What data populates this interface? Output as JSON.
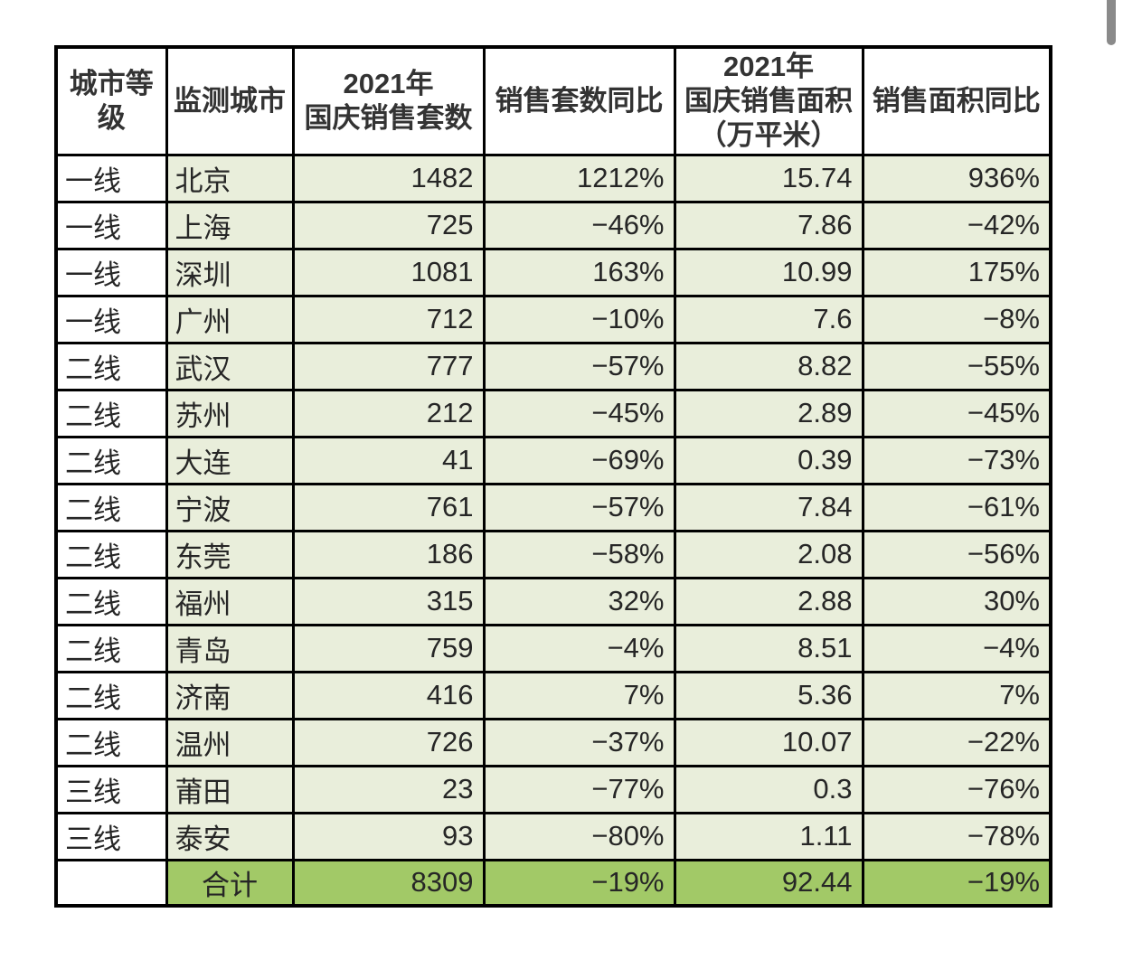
{
  "colors": {
    "cell_background": "#e9eedb",
    "total_row_background": "#a2c967",
    "grid_border": "#000000",
    "header_text": "#333333",
    "body_text": "#262626",
    "scrollbar_thumb": "#8a8a8a",
    "page_background": "#ffffff"
  },
  "chart_data": {
    "type": "table",
    "columns": [
      "城市等级",
      "监测城市",
      "2021年国庆销售套数",
      "销售套数同比",
      "2021年国庆销售面积（万平米）",
      "销售面积同比"
    ],
    "rows": [
      [
        "一线",
        "北京",
        1482,
        "1212%",
        15.74,
        "936%"
      ],
      [
        "一线",
        "上海",
        725,
        "-46%",
        7.86,
        "-42%"
      ],
      [
        "一线",
        "深圳",
        1081,
        "163%",
        10.99,
        "175%"
      ],
      [
        "一线",
        "广州",
        712,
        "-10%",
        7.6,
        "-8%"
      ],
      [
        "二线",
        "武汉",
        777,
        "-57%",
        8.82,
        "-55%"
      ],
      [
        "二线",
        "苏州",
        212,
        "-45%",
        2.89,
        "-45%"
      ],
      [
        "二线",
        "大连",
        41,
        "-69%",
        0.39,
        "-73%"
      ],
      [
        "二线",
        "宁波",
        761,
        "-57%",
        7.84,
        "-61%"
      ],
      [
        "二线",
        "东莞",
        186,
        "-58%",
        2.08,
        "-56%"
      ],
      [
        "二线",
        "福州",
        315,
        "32%",
        2.88,
        "30%"
      ],
      [
        "二线",
        "青岛",
        759,
        "-4%",
        8.51,
        "-4%"
      ],
      [
        "二线",
        "济南",
        416,
        "7%",
        5.36,
        "7%"
      ],
      [
        "二线",
        "温州",
        726,
        "-37%",
        10.07,
        "-22%"
      ],
      [
        "三线",
        "莆田",
        23,
        "-77%",
        0.3,
        "-76%"
      ],
      [
        "三线",
        "泰安",
        93,
        "-80%",
        1.11,
        "-78%"
      ]
    ],
    "total": [
      "",
      "合计",
      8309,
      "-19%",
      92.44,
      "-19%"
    ]
  },
  "table": {
    "headers": {
      "tier": "城市等\n级",
      "city": "监测城市",
      "units": "2021年\n国庆销售套数",
      "units_yoy": "销售套数同比",
      "area": "2021年\n国庆销售面积\n（万平米）",
      "area_yoy": "销售面积同比"
    },
    "rows": [
      {
        "tier": "一线",
        "city": "北京",
        "units": "1482",
        "units_yoy": "1212%",
        "area": "15.74",
        "area_yoy": "936%"
      },
      {
        "tier": "一线",
        "city": "上海",
        "units": "725",
        "units_yoy": "−46%",
        "area": "7.86",
        "area_yoy": "−42%"
      },
      {
        "tier": "一线",
        "city": "深圳",
        "units": "1081",
        "units_yoy": "163%",
        "area": "10.99",
        "area_yoy": "175%"
      },
      {
        "tier": "一线",
        "city": "广州",
        "units": "712",
        "units_yoy": "−10%",
        "area": "7.6",
        "area_yoy": "−8%"
      },
      {
        "tier": "二线",
        "city": "武汉",
        "units": "777",
        "units_yoy": "−57%",
        "area": "8.82",
        "area_yoy": "−55%"
      },
      {
        "tier": "二线",
        "city": "苏州",
        "units": "212",
        "units_yoy": "−45%",
        "area": "2.89",
        "area_yoy": "−45%"
      },
      {
        "tier": "二线",
        "city": "大连",
        "units": "41",
        "units_yoy": "−69%",
        "area": "0.39",
        "area_yoy": "−73%"
      },
      {
        "tier": "二线",
        "city": "宁波",
        "units": "761",
        "units_yoy": "−57%",
        "area": "7.84",
        "area_yoy": "−61%"
      },
      {
        "tier": "二线",
        "city": "东莞",
        "units": "186",
        "units_yoy": "−58%",
        "area": "2.08",
        "area_yoy": "−56%"
      },
      {
        "tier": "二线",
        "city": "福州",
        "units": "315",
        "units_yoy": "32%",
        "area": "2.88",
        "area_yoy": "30%"
      },
      {
        "tier": "二线",
        "city": "青岛",
        "units": "759",
        "units_yoy": "−4%",
        "area": "8.51",
        "area_yoy": "−4%"
      },
      {
        "tier": "二线",
        "city": "济南",
        "units": "416",
        "units_yoy": "7%",
        "area": "5.36",
        "area_yoy": "7%"
      },
      {
        "tier": "二线",
        "city": "温州",
        "units": "726",
        "units_yoy": "−37%",
        "area": "10.07",
        "area_yoy": "−22%"
      },
      {
        "tier": "三线",
        "city": "莆田",
        "units": "23",
        "units_yoy": "−77%",
        "area": "0.3",
        "area_yoy": "−76%"
      },
      {
        "tier": "三线",
        "city": "泰安",
        "units": "93",
        "units_yoy": "−80%",
        "area": "1.11",
        "area_yoy": "−78%"
      }
    ],
    "total": {
      "tier": "",
      "label": "合计",
      "units": "8309",
      "units_yoy": "−19%",
      "area": "92.44",
      "area_yoy": "−19%"
    }
  }
}
